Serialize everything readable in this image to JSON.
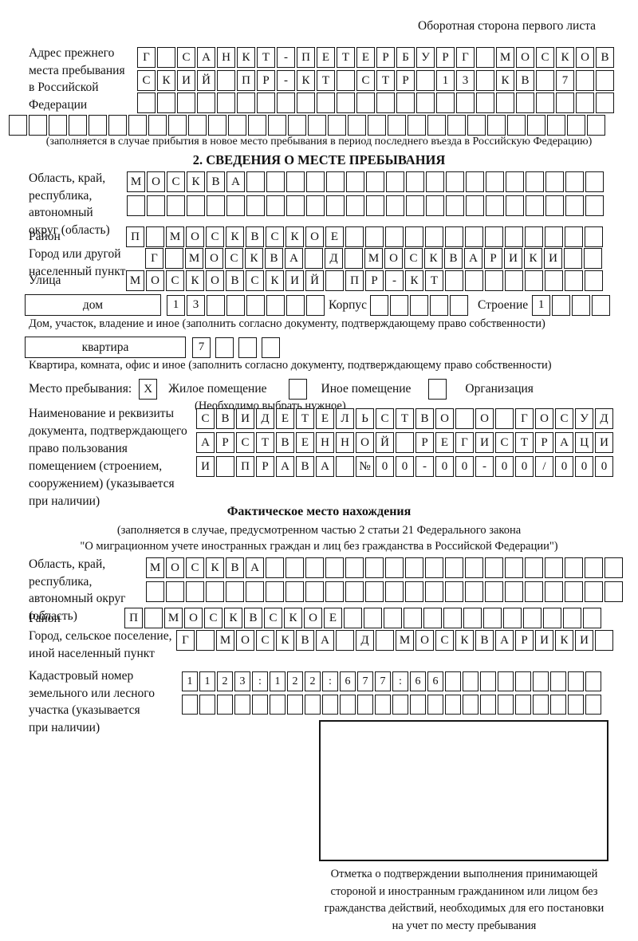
{
  "page": {
    "header_note": "Оборотная сторона первого листа"
  },
  "prev_address": {
    "label": [
      "Адрес прежнего",
      "места пребывания",
      "в Российской",
      "Федерации"
    ],
    "row1": "Г САНКТ-ПЕТЕРБУРГ МОСКОВ",
    "row2": "СКИЙ ПР-КТ СТР 13 КВ 7  ",
    "row3": "                        ",
    "row4": "                              ",
    "note": "(заполняется в случае прибытия в новое место пребывания в период последнего въезда в Российскую Федерацию)"
  },
  "section2": {
    "title": "2. СВЕДЕНИЯ О МЕСТЕ ПРЕБЫВАНИЯ",
    "oblast_label": [
      "Область, край,",
      "республика,",
      "автономный",
      "округ (область)"
    ],
    "oblast_row1": "МОСКВА                  ",
    "oblast_row2": "                        ",
    "rayon_label": "Район",
    "rayon_row": "П МОСКВСКОЕ             ",
    "gorod_label": [
      "Город или другой",
      "населенный пункт"
    ],
    "gorod_row": "Г МОСКВА Д МОСКВАРИКИ  ",
    "ulitsa_label": "Улица",
    "ulitsa_row": "МОСКОВСКИЙ ПР-КТ        ",
    "dom_box_label": "дом",
    "dom_cells": "13      ",
    "korpus_label": "Корпус",
    "korpus_cells": "     ",
    "stroenie_label": "Строение",
    "stroenie_cells": "1   ",
    "dom_note": "Дом, участок, владение и иное (заполнить согласно документу, подтверждающему право собственности)",
    "kvartira_box_label": "квартира",
    "kvartira_cells": "7   ",
    "kvartira_note": "Квартира, комната, офис и иное (заполнить согласно документу, подтверждающему право собственности)",
    "mesto": {
      "label": "Место пребывания:",
      "zhiloe_mark": "X",
      "zhiloe_label": "Жилое помещение",
      "inoe_mark": " ",
      "inoe_label": "Иное помещение",
      "org_mark": " ",
      "org_label": "Организация",
      "note": "(Необходимо выбрать нужное)"
    },
    "doc_label": [
      "Наименование и реквизиты",
      "документа, подтверждающего",
      "право пользования",
      "помещением (строением,",
      "сооружением) (указывается",
      "при наличии)"
    ],
    "doc_row1": "СВИДЕТЕЛЬСТВО О ГОСУД",
    "doc_row2": "АРСТВЕННОЙ РЕГИСТРАЦИ",
    "doc_row3": "И ПРАВА №00-00-00/000"
  },
  "fact": {
    "title": "Фактическое место нахождения",
    "note1": "(заполняется в случае, предусмотренном частью 2 статьи 21 Федерального закона",
    "note2": "\"О миграционном учете иностранных граждан и лиц без гражданства в Российской Федерации\")",
    "oblast_label": [
      "Область, край,",
      "республика,",
      "автономный округ",
      "(область)"
    ],
    "oblast_row1": "МОСКВА                  ",
    "oblast_row2": "                        ",
    "rayon_label": "Район",
    "rayon_row": "П МОСКВСКОЕ             ",
    "gorod_label": [
      "Город, сельское поселение,",
      "иной населенный пункт"
    ],
    "gorod_row": "Г МОСКВА Д МОСКВАРИКИ ",
    "kadastr_label": [
      "Кадастровый номер",
      "земельного или лесного",
      "участка (указывается",
      "при наличии)"
    ],
    "kadastr_row1": "1123:122:677:66         ",
    "kadastr_row2": "                        ",
    "stamp_note": [
      "Отметка о подтверждении выполнения принимающей",
      "стороной и иностранным гражданином или лицом без",
      "гражданства действий, необходимых для его постановки",
      "на учет по месту пребывания"
    ]
  }
}
